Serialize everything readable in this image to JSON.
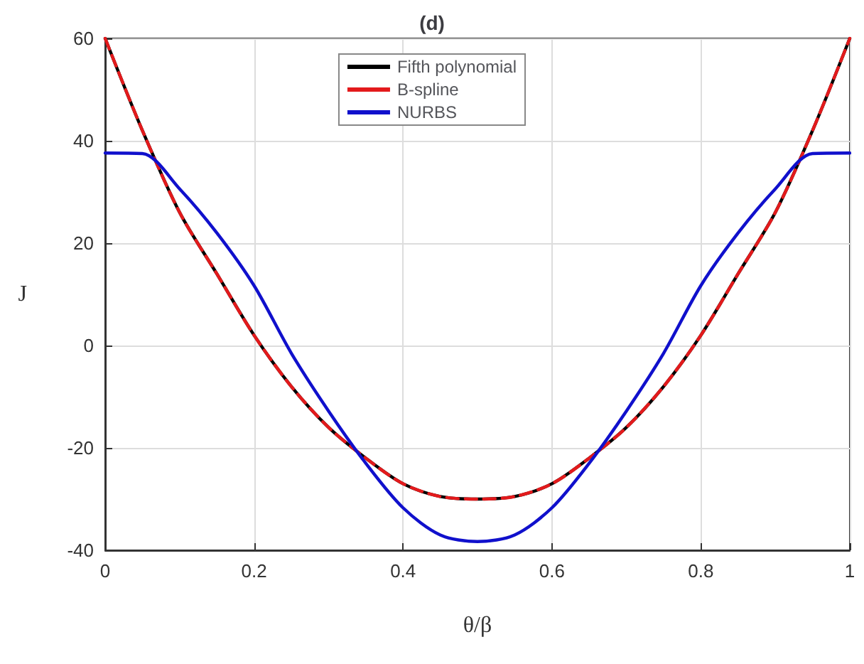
{
  "chart_data": {
    "type": "line",
    "title": "(d)",
    "xlabel": "θ/β",
    "ylabel": "J",
    "x": [
      0,
      0.05,
      0.1,
      0.15,
      0.2,
      0.25,
      0.3,
      0.35,
      0.4,
      0.45,
      0.5,
      0.55,
      0.6,
      0.65,
      0.7,
      0.75,
      0.8,
      0.85,
      0.9,
      0.95,
      1
    ],
    "series": [
      {
        "name": "Fifth polynomial",
        "color": "#000000",
        "line_style": "solid",
        "values": [
          60,
          42,
          26,
          14,
          2,
          -8,
          -16,
          -22,
          -27,
          -29.5,
          -30,
          -29.5,
          -27,
          -22,
          -16,
          -8,
          2,
          14,
          26,
          42,
          60
        ]
      },
      {
        "name": "B-spline",
        "color": "#e31a1c",
        "line_style": "dashed",
        "values": [
          60,
          42,
          26,
          14,
          2,
          -8,
          -16,
          -22,
          -27,
          -29.5,
          -30,
          -29.5,
          -27,
          -22,
          -16,
          -8,
          2,
          14,
          26,
          42,
          60
        ]
      },
      {
        "name": "NURBS",
        "color": "#1010cc",
        "line_style": "solid",
        "values": [
          37.6,
          37.5,
          30.6,
          22,
          11.7,
          -1.5,
          -12.8,
          -23,
          -31.7,
          -37,
          -38.3,
          -37,
          -31.7,
          -23,
          -12.8,
          -1.5,
          11.7,
          22,
          30.6,
          37.5,
          37.6
        ]
      }
    ],
    "xlim": [
      0,
      1
    ],
    "xticks": [
      0,
      0.2,
      0.4,
      0.6,
      0.8,
      1
    ],
    "ylim": [
      -40,
      60
    ],
    "yticks": [
      -40,
      -20,
      0,
      20,
      40,
      60
    ],
    "grid": true,
    "legend": "top",
    "marker": "none"
  }
}
